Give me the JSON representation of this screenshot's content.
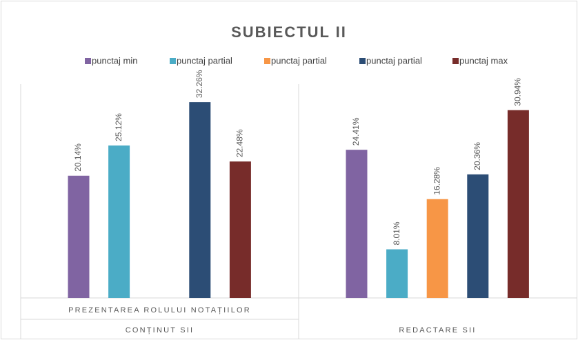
{
  "chart_data": {
    "type": "bar",
    "title": "SUBIECTUL II",
    "categories": [
      "PREZENTAREA ROLULUI NOTAȚIILOR",
      null
    ],
    "category_groups": [
      "CONȚINUT SII",
      "REDACTARE SII"
    ],
    "series": [
      {
        "name": "punctaj min",
        "color": "#8064a2",
        "values": [
          20.14,
          24.41
        ],
        "value_labels": [
          "20.14%",
          "24.41%"
        ]
      },
      {
        "name": "punctaj partial",
        "color": "#4bacc6",
        "values": [
          25.12,
          8.01
        ],
        "value_labels": [
          "25.12%",
          "8.01%"
        ]
      },
      {
        "name": "punctaj partial",
        "color": "#f79646",
        "values": [
          null,
          16.28
        ],
        "value_labels": [
          null,
          "16.28%"
        ]
      },
      {
        "name": "punctaj partial",
        "color": "#2c4d75",
        "values": [
          32.26,
          20.36
        ],
        "value_labels": [
          "32.26%",
          "20.36%"
        ]
      },
      {
        "name": "punctaj max",
        "color": "#772c2a",
        "values": [
          22.48,
          30.94
        ],
        "value_labels": [
          "22.48%",
          "30.94%"
        ]
      }
    ],
    "legend": "top"
  }
}
